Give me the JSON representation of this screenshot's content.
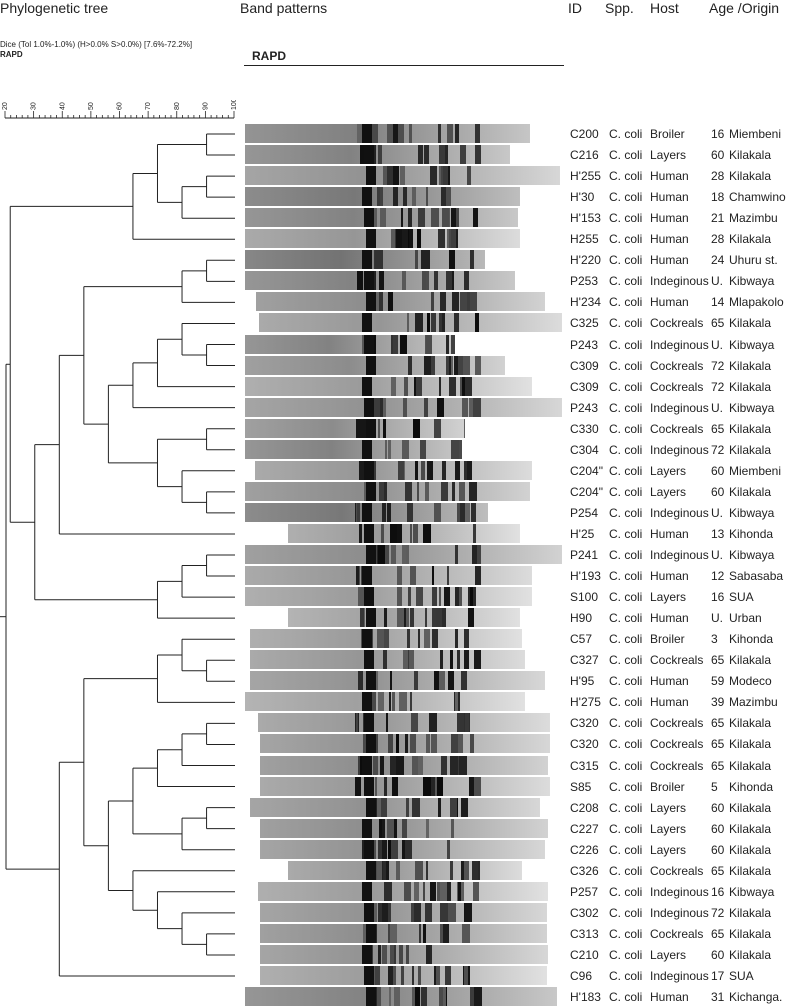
{
  "headers": {
    "tree": "Phylogenetic tree",
    "bands": "Band patterns",
    "id": "ID",
    "spp": "Spp.",
    "host": "Host",
    "age_origin": "Age /Origin"
  },
  "method_line": "Dice (Tol 1.0%-1.0%) (H>0.0% S>0.0%) [7.6%-72.2%]",
  "method_name": "RAPD",
  "gel_title": "RAPD",
  "scale_ticks": [
    "20",
    "30",
    "40",
    "50",
    "60",
    "70",
    "80",
    "90",
    "100"
  ],
  "isolates": [
    {
      "id": "C200",
      "spp": "C. coli",
      "host": "Broiler",
      "age": "16",
      "origin": "Miembeni"
    },
    {
      "id": "C216",
      "spp": "C. coli",
      "host": "Layers",
      "age": "60",
      "origin": "Kilakala"
    },
    {
      "id": "H'255",
      "spp": "C. coli",
      "host": "Human",
      "age": "28",
      "origin": "Kilakala"
    },
    {
      "id": "H'30",
      "spp": "C. coli",
      "host": "Human",
      "age": "18",
      "origin": "Chamwino"
    },
    {
      "id": "H'153",
      "spp": "C. coli",
      "host": "Human",
      "age": "21",
      "origin": "Mazimbu"
    },
    {
      "id": "H255",
      "spp": "C. coli",
      "host": "Human",
      "age": "28",
      "origin": "Kilakala"
    },
    {
      "id": "H'220",
      "spp": "C. coli",
      "host": "Human",
      "age": "24",
      "origin": "Uhuru st."
    },
    {
      "id": "P253",
      "spp": "C. coli",
      "host": "Indeginous",
      "age": "U.",
      "origin": "Kibwaya"
    },
    {
      "id": "H'234",
      "spp": "C. coli",
      "host": "Human",
      "age": "14",
      "origin": "Mlapakolo"
    },
    {
      "id": "C325",
      "spp": "C. coli",
      "host": "Cockreals",
      "age": "65",
      "origin": "Kilakala"
    },
    {
      "id": "P243",
      "spp": "C. coli",
      "host": "Indeginous",
      "age": "U.",
      "origin": "Kibwaya"
    },
    {
      "id": "C309",
      "spp": "C. coli",
      "host": "Cockreals",
      "age": "72",
      "origin": "Kilakala"
    },
    {
      "id": "C309",
      "spp": "C. coli",
      "host": "Cockreals",
      "age": "72",
      "origin": "Kilakala"
    },
    {
      "id": "P243",
      "spp": "C. coli",
      "host": "Indeginous",
      "age": "U.",
      "origin": "Kibwaya"
    },
    {
      "id": "C330",
      "spp": "C. coli",
      "host": "Cockreals",
      "age": "65",
      "origin": "Kilakala"
    },
    {
      "id": "C304",
      "spp": "C. coli",
      "host": "Indeginous",
      "age": "72",
      "origin": "Kilakala"
    },
    {
      "id": "C204\"",
      "spp": "C. coli",
      "host": "Layers",
      "age": "60",
      "origin": "Miembeni"
    },
    {
      "id": "C204\"",
      "spp": "C. coli",
      "host": "Layers",
      "age": "60",
      "origin": "Kilakala"
    },
    {
      "id": "P254",
      "spp": "C. coli",
      "host": "Indeginous",
      "age": "U.",
      "origin": "Kibwaya"
    },
    {
      "id": "H'25",
      "spp": "C. coli",
      "host": "Human",
      "age": "13",
      "origin": "Kihonda"
    },
    {
      "id": "P241",
      "spp": "C. coli",
      "host": "Indeginous",
      "age": "U.",
      "origin": "Kibwaya"
    },
    {
      "id": "H'193",
      "spp": "C. coli",
      "host": "Human",
      "age": "12",
      "origin": "Sabasaba"
    },
    {
      "id": "S100",
      "spp": "C. coli",
      "host": "Layers",
      "age": "16",
      "origin": "SUA"
    },
    {
      "id": "H90",
      "spp": "C. coli",
      "host": "Human",
      "age": "U.",
      "origin": "Urban"
    },
    {
      "id": "C57",
      "spp": "C. coli",
      "host": "Broiler",
      "age": "3",
      "origin": "Kihonda"
    },
    {
      "id": "C327",
      "spp": "C. coli",
      "host": "Cockreals",
      "age": "65",
      "origin": "Kilakala"
    },
    {
      "id": "H'95",
      "spp": "C. coli",
      "host": "Human",
      "age": "59",
      "origin": "Modeco"
    },
    {
      "id": "H'275",
      "spp": "C. coli",
      "host": "Human",
      "age": "39",
      "origin": "Mazimbu"
    },
    {
      "id": "C320",
      "spp": "C. coli",
      "host": "Cockreals",
      "age": "65",
      "origin": "Kilakala"
    },
    {
      "id": "C320",
      "spp": "C. coli",
      "host": "Cockreals",
      "age": "65",
      "origin": "Kilakala"
    },
    {
      "id": "C315",
      "spp": "C. coli",
      "host": "Cockreals",
      "age": "65",
      "origin": "Kilakala"
    },
    {
      "id": "S85",
      "spp": "C. coli",
      "host": "Broiler",
      "age": "5",
      "origin": "Kihonda"
    },
    {
      "id": "C208",
      "spp": "C. coli",
      "host": "Layers",
      "age": "60",
      "origin": "Kilakala"
    },
    {
      "id": "C227",
      "spp": "C. coli",
      "host": "Layers",
      "age": "60",
      "origin": "Kilakala"
    },
    {
      "id": "C226",
      "spp": "C. coli",
      "host": "Layers",
      "age": "60",
      "origin": "Kilakala"
    },
    {
      "id": "C326",
      "spp": "C. coli",
      "host": "Cockreals",
      "age": "65",
      "origin": "Kilakala"
    },
    {
      "id": "P257",
      "spp": "C. coli",
      "host": "Indeginous",
      "age": "16",
      "origin": "Kibwaya"
    },
    {
      "id": "C302",
      "spp": "C. coli",
      "host": "Indeginous",
      "age": "72",
      "origin": "Kilakala"
    },
    {
      "id": "C313",
      "spp": "C. coli",
      "host": "Cockreals",
      "age": "65",
      "origin": "Kilakala"
    },
    {
      "id": "C210",
      "spp": "C. coli",
      "host": "Layers",
      "age": "60",
      "origin": "Kilakala"
    },
    {
      "id": "C96",
      "spp": "C. coli",
      "host": "Indeginous",
      "age": "17",
      "origin": "SUA"
    },
    {
      "id": "H'183",
      "spp": "C. coli",
      "host": "Human",
      "age": "31",
      "origin": "Kichanga."
    }
  ],
  "colors": {
    "line": "#222222",
    "gel_dark": "#111111",
    "gel_light": "#e6e6e6"
  }
}
